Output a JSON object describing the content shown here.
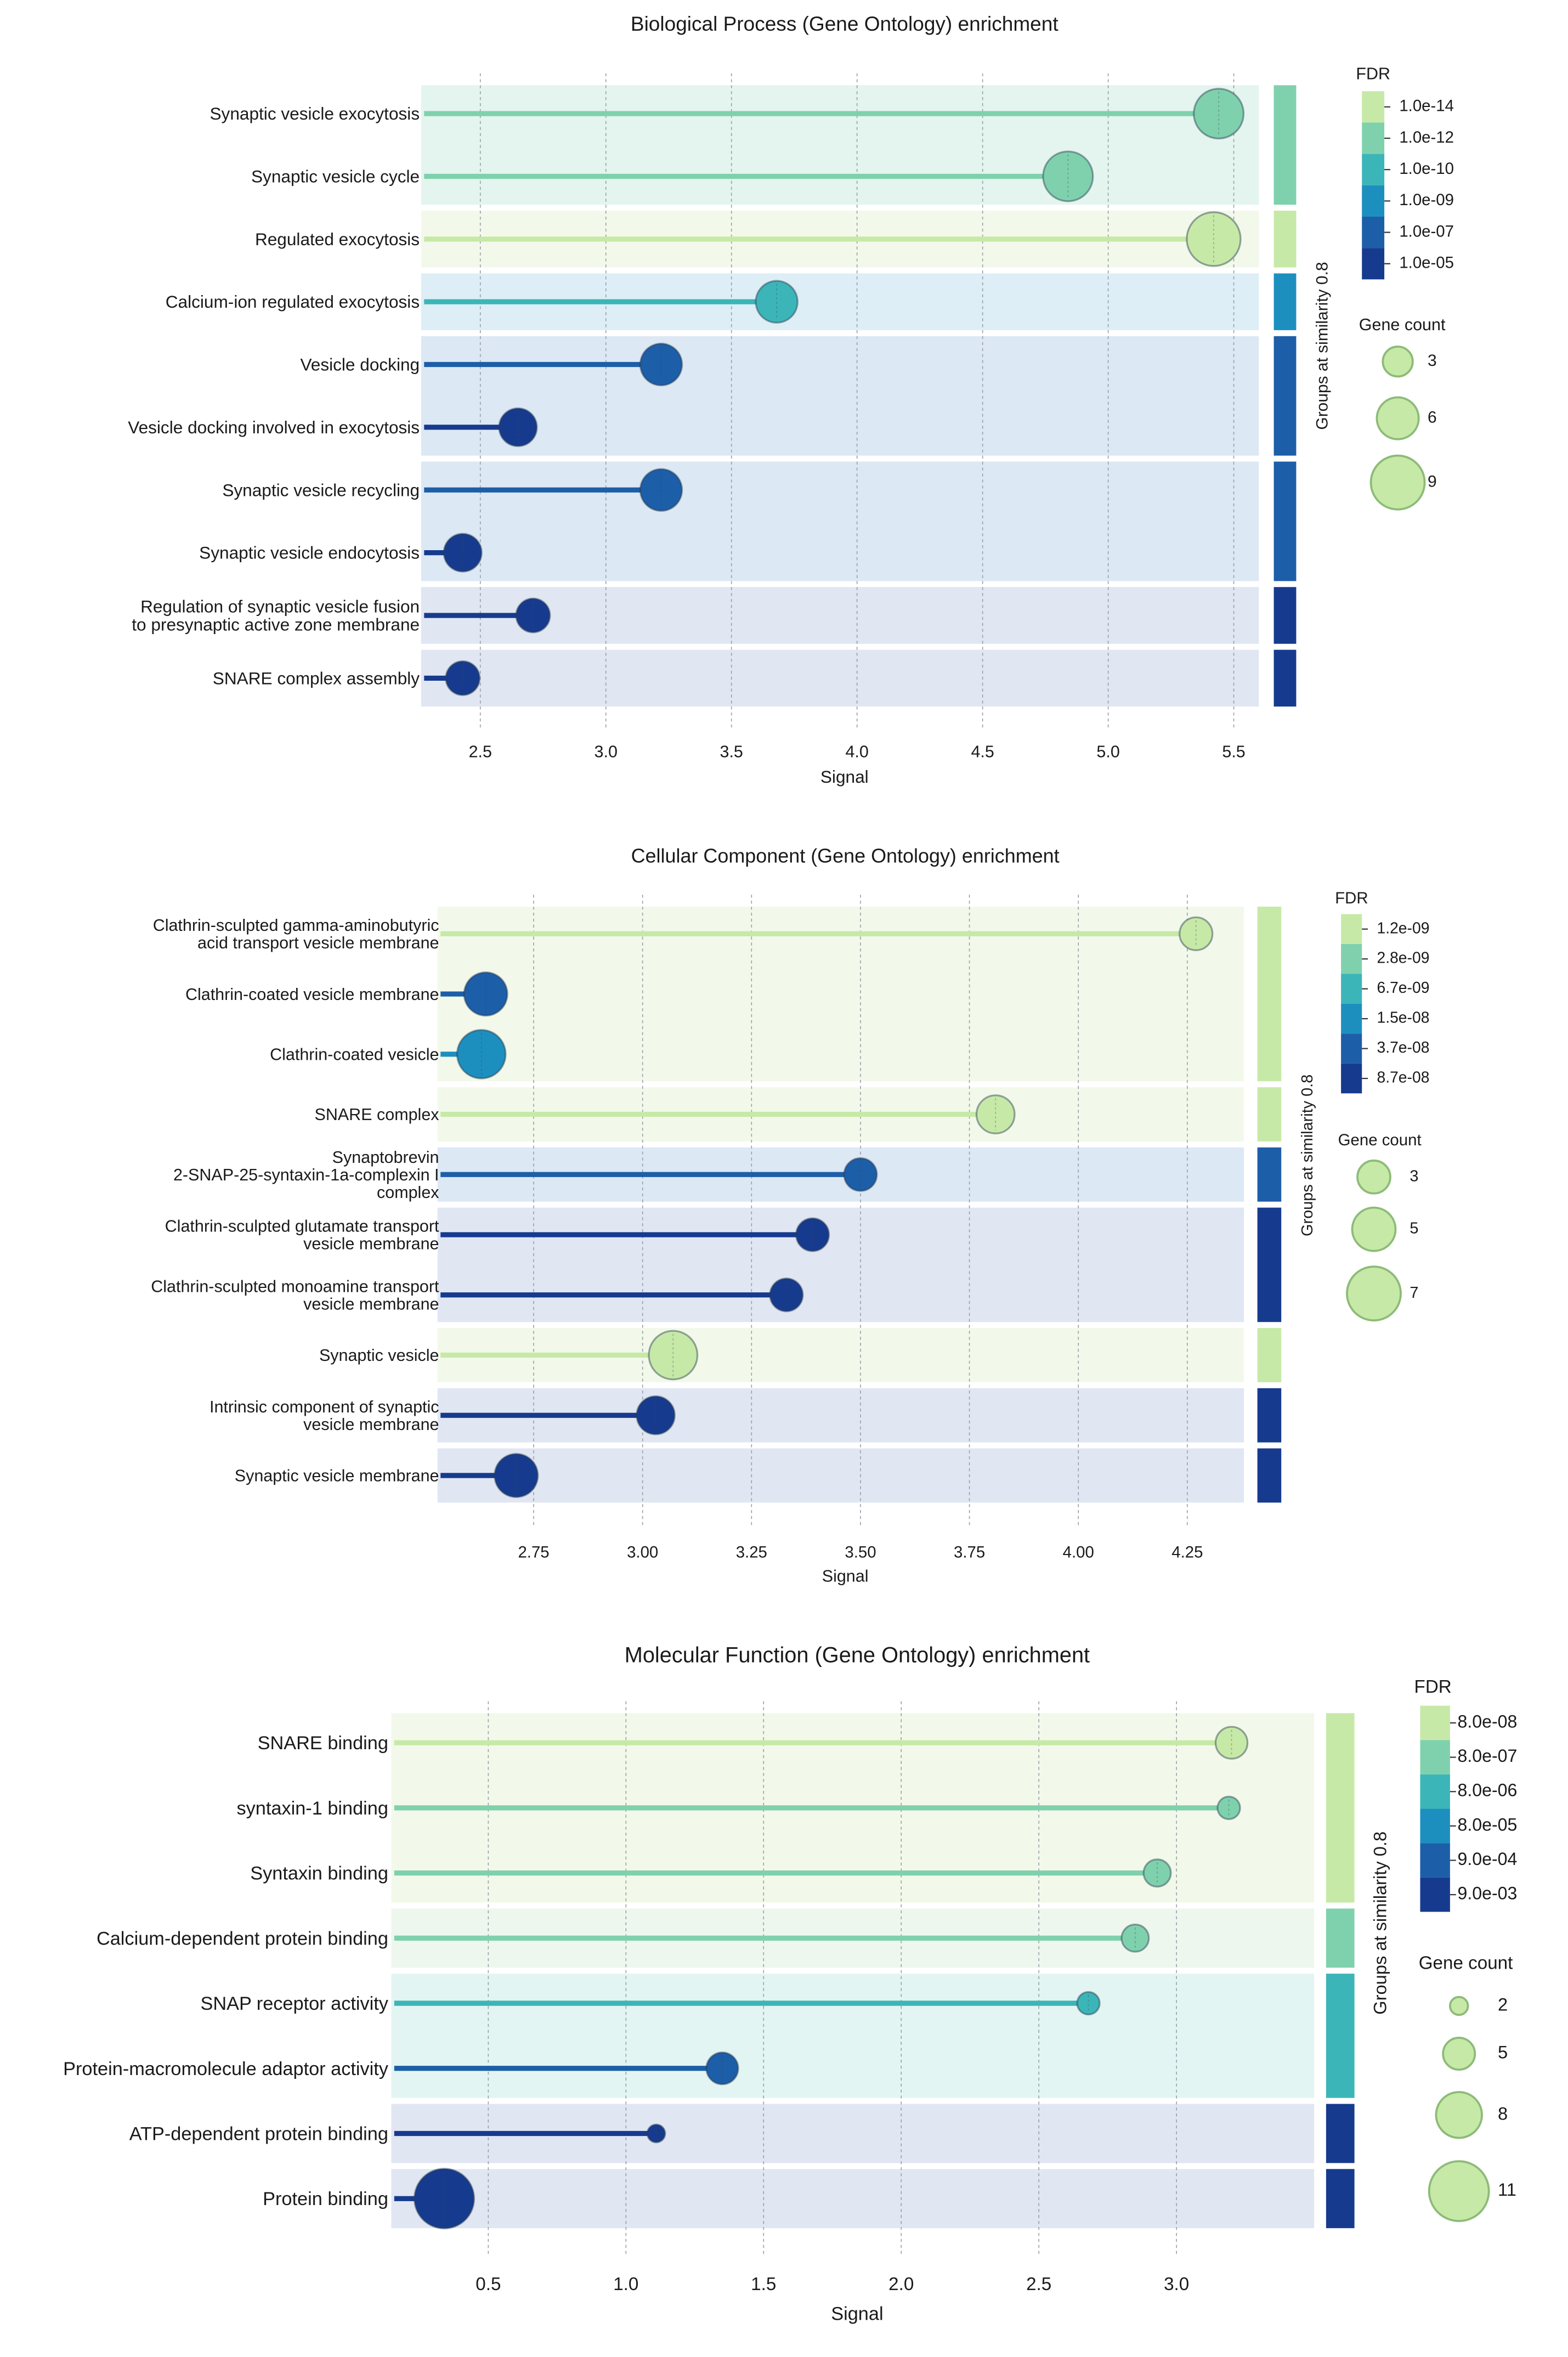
{
  "figure": {
    "description_free": true
  },
  "chart_data": [
    {
      "type": "lollipop",
      "title": "Biological Process (Gene Ontology) enrichment",
      "xlabel": "Signal",
      "xlim": [
        2.3,
        5.6
      ],
      "xticks": [
        2.5,
        3.0,
        3.5,
        4.0,
        4.5,
        5.0,
        5.5
      ],
      "xtick_labels": [
        "2.5",
        "3.0",
        "3.5",
        "4.0",
        "4.5",
        "5.0",
        "5.5"
      ],
      "colorbar_title": "FDR",
      "colorbar_labels": [
        "1.0e-14",
        "1.0e-12",
        "1.0e-10",
        "1.0e-09",
        "1.0e-07",
        "1.0e-05"
      ],
      "colorbar_colors": [
        "#c7e9a7",
        "#7fd1ad",
        "#3cb5b8",
        "#1d8fbf",
        "#1d5ea8",
        "#163b8e"
      ],
      "size_legend_title": "Gene count",
      "size_legend": [
        3,
        6,
        9
      ],
      "size_range": [
        3,
        9
      ],
      "group_axis_label": "Groups at similarity 0.8",
      "group_colors": [
        "#7fd1ad",
        "#c7e9a7",
        "#1d8fbf",
        "#1d5ea8",
        "#1d5ea8",
        "#163b8e",
        "#163b8e"
      ],
      "group_bg": [
        "#e3f5ee",
        "#f2f9ea",
        "#ddeef6",
        "#dde8f5",
        "#dde8f5",
        "#e1e6f3",
        "#e1e6f3"
      ],
      "terms": [
        {
          "label": [
            "Synaptic vesicle exocytosis"
          ],
          "signal": 5.44,
          "gene_count": 8,
          "color": "#7fd1ad",
          "group": 0
        },
        {
          "label": [
            "Synaptic vesicle cycle"
          ],
          "signal": 4.84,
          "gene_count": 8,
          "color": "#7fd1ad",
          "group": 0
        },
        {
          "label": [
            "Regulated exocytosis"
          ],
          "signal": 5.42,
          "gene_count": 9,
          "color": "#c7e9a7",
          "group": 1
        },
        {
          "label": [
            "Calcium-ion regulated exocytosis"
          ],
          "signal": 3.68,
          "gene_count": 6,
          "color": "#3cb5b8",
          "group": 2
        },
        {
          "label": [
            "Vesicle docking"
          ],
          "signal": 3.22,
          "gene_count": 6,
          "color": "#1d5ea8",
          "group": 3
        },
        {
          "label": [
            "Vesicle docking involved in exocytosis"
          ],
          "signal": 2.65,
          "gene_count": 5,
          "color": "#163b8e",
          "group": 3
        },
        {
          "label": [
            "Synaptic vesicle recycling"
          ],
          "signal": 3.22,
          "gene_count": 6,
          "color": "#1d5ea8",
          "group": 4
        },
        {
          "label": [
            "Synaptic vesicle endocytosis"
          ],
          "signal": 2.43,
          "gene_count": 5,
          "color": "#163b8e",
          "group": 4
        },
        {
          "label": [
            "Regulation of synaptic vesicle fusion",
            "to presynaptic active zone membrane"
          ],
          "signal": 2.71,
          "gene_count": 4,
          "color": "#163b8e",
          "group": 5
        },
        {
          "label": [
            "SNARE complex assembly"
          ],
          "signal": 2.43,
          "gene_count": 4,
          "color": "#163b8e",
          "group": 6
        }
      ]
    },
    {
      "type": "lollipop",
      "title": "Cellular Component (Gene Ontology) enrichment",
      "xlabel": "Signal",
      "xlim": [
        2.55,
        4.38
      ],
      "xticks": [
        2.75,
        3.0,
        3.25,
        3.5,
        3.75,
        4.0,
        4.25
      ],
      "xtick_labels": [
        "2.75",
        "3.00",
        "3.25",
        "3.50",
        "3.75",
        "4.00",
        "4.25"
      ],
      "colorbar_title": "FDR",
      "colorbar_labels": [
        "1.2e-09",
        "2.8e-09",
        "6.7e-09",
        "1.5e-08",
        "3.7e-08",
        "8.7e-08"
      ],
      "colorbar_colors": [
        "#c7e9a7",
        "#7fd1ad",
        "#3cb5b8",
        "#1d8fbf",
        "#1d5ea8",
        "#163b8e"
      ],
      "size_legend_title": "Gene count",
      "size_legend": [
        3,
        5,
        7
      ],
      "size_range": [
        3,
        7
      ],
      "group_axis_label": "Groups at similarity 0.8",
      "group_colors": [
        "#c7e9a7",
        "#c7e9a7",
        "#1d5ea8",
        "#163b8e",
        "#c7e9a7",
        "#163b8e",
        "#163b8e"
      ],
      "group_bg": [
        "#f2f9ea",
        "#f2f9ea",
        "#dde8f5",
        "#e1e6f3",
        "#f2f9ea",
        "#e1e6f3",
        "#e1e6f3"
      ],
      "terms": [
        {
          "label": [
            "Clathrin-sculpted gamma-aminobutyric",
            "acid transport vesicle membrane"
          ],
          "signal": 4.27,
          "gene_count": 3,
          "color": "#c7e9a7",
          "group": 0
        },
        {
          "label": [
            "Clathrin-coated vesicle membrane"
          ],
          "signal": 2.64,
          "gene_count": 5,
          "color": "#1d5ea8",
          "group": 0
        },
        {
          "label": [
            "Clathrin-coated vesicle"
          ],
          "signal": 2.63,
          "gene_count": 6,
          "color": "#1d8fbf",
          "group": 0
        },
        {
          "label": [
            "SNARE complex"
          ],
          "signal": 3.81,
          "gene_count": 4,
          "color": "#c7e9a7",
          "group": 1
        },
        {
          "label": [
            "Synaptobrevin",
            "2-SNAP-25-syntaxin-1a-complexin I",
            "complex"
          ],
          "signal": 3.5,
          "gene_count": 3,
          "color": "#1d5ea8",
          "group": 2
        },
        {
          "label": [
            "Clathrin-sculpted glutamate transport",
            "vesicle membrane"
          ],
          "signal": 3.39,
          "gene_count": 3,
          "color": "#163b8e",
          "group": 3
        },
        {
          "label": [
            "Clathrin-sculpted monoamine transport",
            "vesicle membrane"
          ],
          "signal": 3.33,
          "gene_count": 3,
          "color": "#163b8e",
          "group": 3
        },
        {
          "label": [
            "Synaptic vesicle"
          ],
          "signal": 3.07,
          "gene_count": 6,
          "color": "#c7e9a7",
          "group": 4
        },
        {
          "label": [
            "Intrinsic component of synaptic",
            "vesicle membrane"
          ],
          "signal": 3.03,
          "gene_count": 4,
          "color": "#163b8e",
          "group": 5
        },
        {
          "label": [
            "Synaptic vesicle membrane"
          ],
          "signal": 2.71,
          "gene_count": 5,
          "color": "#163b8e",
          "group": 6
        }
      ]
    },
    {
      "type": "lollipop",
      "title": "Molecular Function (Gene Ontology) enrichment",
      "xlabel": "Signal",
      "xlim": [
        0.18,
        3.5
      ],
      "xticks": [
        0.5,
        1.0,
        1.5,
        2.0,
        2.5,
        3.0
      ],
      "xtick_labels": [
        "0.5",
        "1.0",
        "1.5",
        "2.0",
        "2.5",
        "3.0"
      ],
      "colorbar_title": "FDR",
      "colorbar_labels": [
        "8.0e-08",
        "8.0e-07",
        "8.0e-06",
        "8.0e-05",
        "9.0e-04",
        "9.0e-03"
      ],
      "colorbar_colors": [
        "#c7e9a7",
        "#7fd1ad",
        "#3cb5b8",
        "#1d8fbf",
        "#1d5ea8",
        "#163b8e"
      ],
      "size_legend_title": "Gene count",
      "size_legend": [
        2,
        5,
        8,
        11
      ],
      "size_range": [
        2,
        11
      ],
      "group_axis_label": "Groups at similarity 0.8",
      "group_colors": [
        "#c7e9a7",
        "#7fd1ad",
        "#3cb5b8",
        "#163b8e",
        "#163b8e"
      ],
      "group_bg": [
        "#f2f9ea",
        "#eef7ee",
        "#e3f5f2",
        "#e1e6f3",
        "#e1e6f3"
      ],
      "terms": [
        {
          "label": [
            "SNARE binding"
          ],
          "signal": 3.2,
          "gene_count": 5,
          "color": "#c7e9a7",
          "group": 0
        },
        {
          "label": [
            "syntaxin-1 binding"
          ],
          "signal": 3.19,
          "gene_count": 3,
          "color": "#7fd1ad",
          "group": 0
        },
        {
          "label": [
            "Syntaxin binding"
          ],
          "signal": 2.93,
          "gene_count": 4,
          "color": "#7fd1ad",
          "group": 0
        },
        {
          "label": [
            "Calcium-dependent protein binding"
          ],
          "signal": 2.85,
          "gene_count": 4,
          "color": "#7fd1ad",
          "group": 1
        },
        {
          "label": [
            "SNAP receptor activity"
          ],
          "signal": 2.68,
          "gene_count": 3,
          "color": "#3cb5b8",
          "group": 2
        },
        {
          "label": [
            "Protein-macromolecule adaptor activity"
          ],
          "signal": 1.35,
          "gene_count": 5,
          "color": "#1d5ea8",
          "group": 2
        },
        {
          "label": [
            "ATP-dependent protein binding"
          ],
          "signal": 1.11,
          "gene_count": 2,
          "color": "#163b8e",
          "group": 3
        },
        {
          "label": [
            "Protein binding"
          ],
          "signal": 0.34,
          "gene_count": 11,
          "color": "#163b8e",
          "group": 4
        }
      ]
    }
  ]
}
